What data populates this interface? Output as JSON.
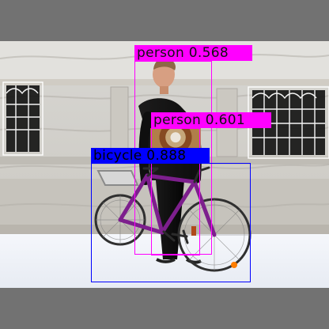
{
  "detections": [
    {
      "label": "person 0.568",
      "color": "#ff00ff"
    },
    {
      "label": "person 0.601",
      "color": "#ff00ff"
    },
    {
      "label": "bicycle 0.888",
      "color": "#0000ff"
    }
  ]
}
